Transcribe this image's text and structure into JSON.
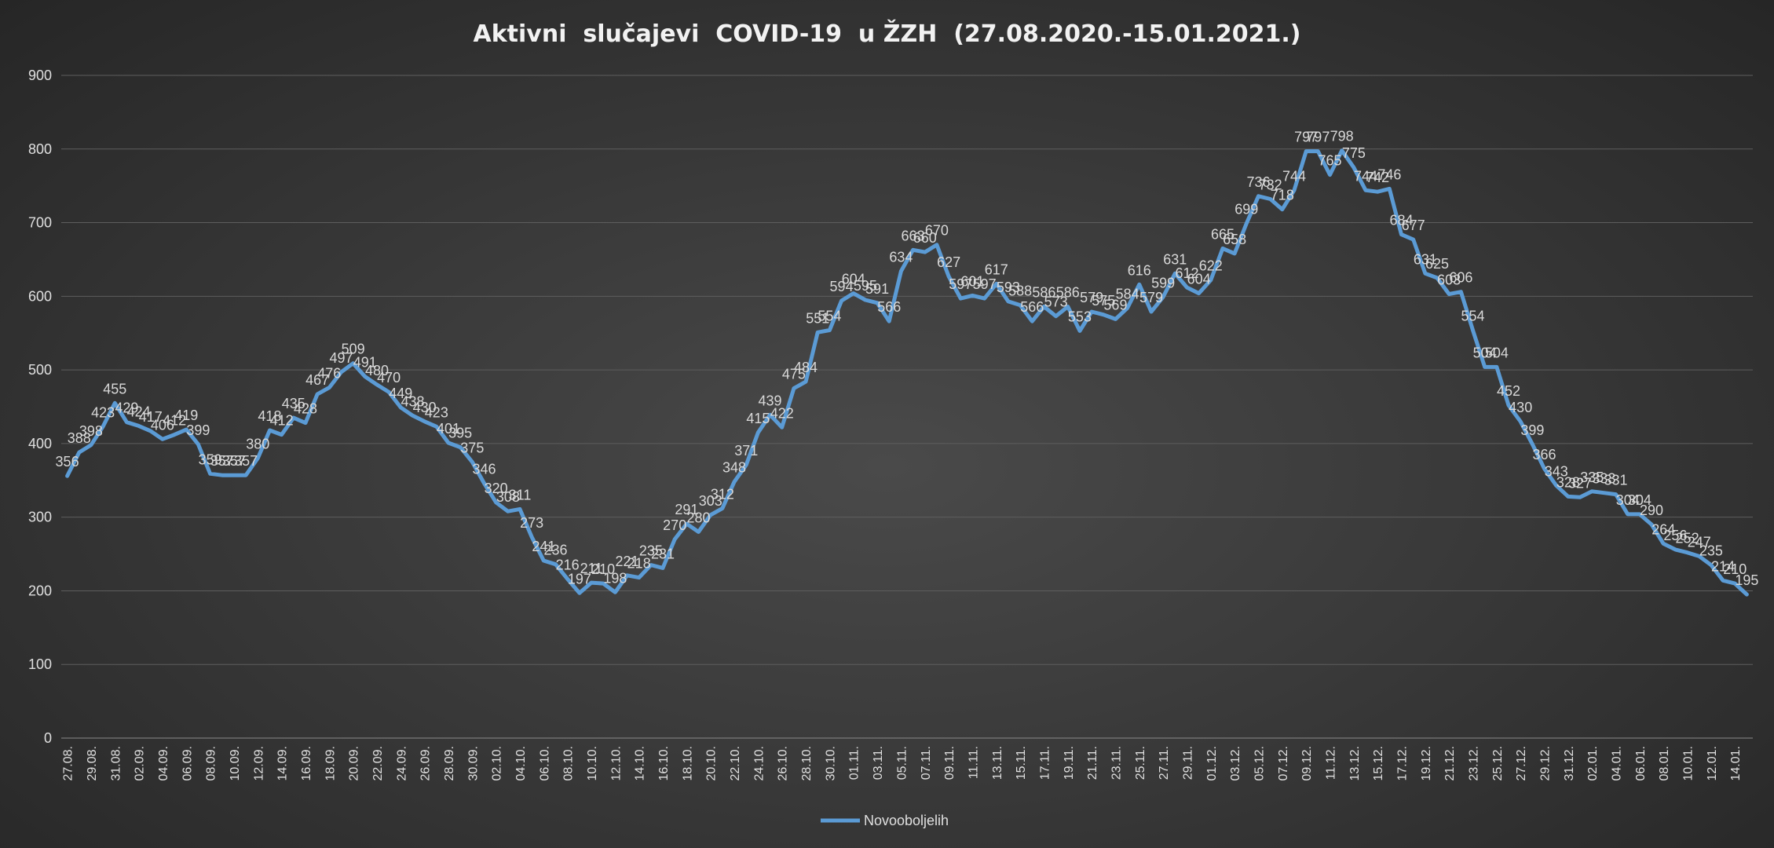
{
  "chart_data": {
    "type": "line",
    "title": "Aktivni  slučajevi  COVID-19  u ŽZH  (27.08.2020.-15.01.2021.)",
    "xlabel": "",
    "ylabel": "",
    "ylim": [
      0,
      900
    ],
    "yticks": [
      "0",
      "100",
      "200",
      "300",
      "400",
      "500",
      "600",
      "700",
      "800",
      "900"
    ],
    "grid": true,
    "legend_position": "bottom",
    "line_color": "#5b9bd5",
    "xtick_labels": [
      "27.08.",
      "29.08.",
      "31.08.",
      "02.09.",
      "04.09.",
      "06.09.",
      "08.09.",
      "10.09.",
      "12.09.",
      "14.09.",
      "16.09.",
      "18.09.",
      "20.09.",
      "22.09.",
      "24.09.",
      "26.09.",
      "28.09.",
      "30.09.",
      "02.10.",
      "04.10.",
      "06.10.",
      "08.10.",
      "10.10.",
      "12.10.",
      "14.10.",
      "16.10.",
      "18.10.",
      "20.10.",
      "22.10.",
      "24.10.",
      "26.10.",
      "28.10.",
      "30.10.",
      "01.11.",
      "03.11.",
      "05.11.",
      "07.11.",
      "09.11.",
      "11.11.",
      "13.11.",
      "15.11.",
      "17.11.",
      "19.11.",
      "21.11.",
      "23.11.",
      "25.11.",
      "27.11.",
      "29.11.",
      "01.12.",
      "03.12.",
      "05.12.",
      "07.12.",
      "09.12.",
      "11.12.",
      "13.12.",
      "15.12.",
      "17.12.",
      "19.12.",
      "21.12.",
      "23.12.",
      "25.12.",
      "27.12.",
      "29.12.",
      "31.12.",
      "02.01.",
      "04.01.",
      "06.01.",
      "08.01.",
      "10.01.",
      "12.01.",
      "14.01."
    ],
    "series": [
      {
        "name": "Novooboljelih",
        "values": [
          356,
          388,
          398,
          423,
          455,
          429,
          424,
          417,
          406,
          412,
          419,
          399,
          359,
          357,
          357,
          357,
          380,
          418,
          412,
          435,
          428,
          467,
          476,
          497,
          509,
          491,
          480,
          470,
          449,
          438,
          430,
          423,
          401,
          395,
          375,
          346,
          320,
          308,
          311,
          273,
          241,
          236,
          216,
          197,
          211,
          210,
          198,
          221,
          218,
          235,
          231,
          270,
          291,
          280,
          303,
          312,
          348,
          371,
          415,
          439,
          422,
          475,
          484,
          551,
          554,
          594,
          604,
          595,
          591,
          566,
          634,
          663,
          660,
          670,
          627,
          597,
          601,
          597,
          617,
          593,
          588,
          566,
          586,
          573,
          586,
          553,
          579,
          575,
          569,
          584,
          616,
          579,
          599,
          631,
          612,
          604,
          622,
          665,
          658,
          699,
          736,
          732,
          718,
          744,
          797,
          797,
          765,
          798,
          775,
          744,
          742,
          746,
          684,
          677,
          631,
          625,
          603,
          606,
          554,
          504,
          504,
          452,
          430,
          399,
          366,
          343,
          328,
          327,
          335,
          333,
          331,
          304,
          304,
          290,
          264,
          256,
          252,
          247,
          235,
          214,
          210,
          195
        ]
      }
    ]
  }
}
